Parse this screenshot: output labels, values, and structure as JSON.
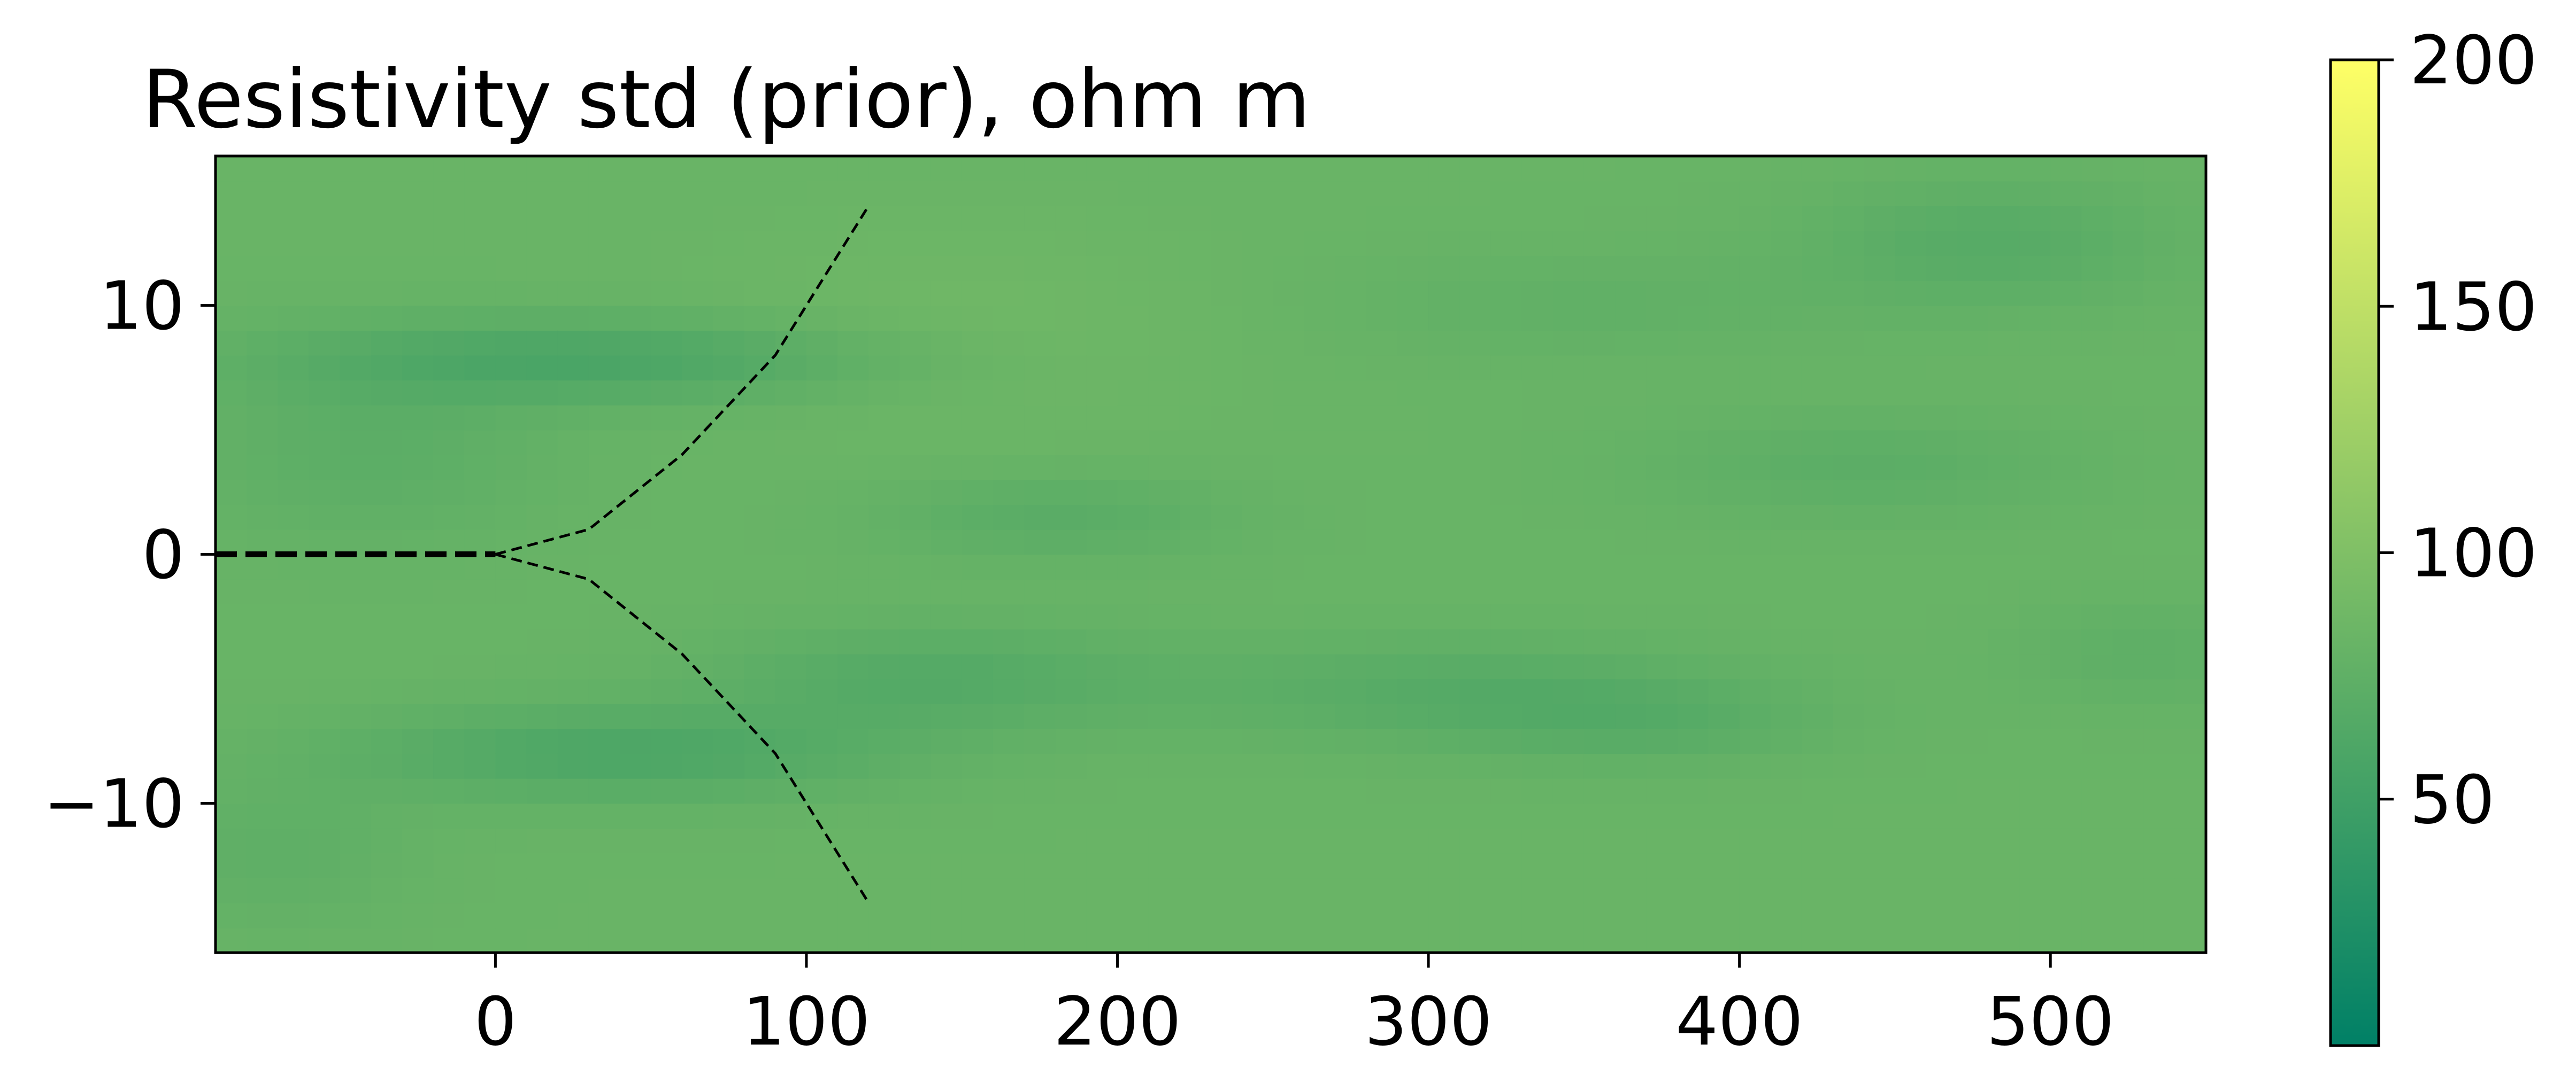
{
  "chart_data": {
    "type": "heatmap",
    "title": "Resistivity std (prior), ohm m",
    "xlabel": "",
    "ylabel": "",
    "xlim": [
      -90,
      550
    ],
    "ylim": [
      -16,
      16
    ],
    "x_ticks": [
      0,
      100,
      200,
      300,
      400,
      500
    ],
    "y_ticks": [
      -10,
      0,
      10
    ],
    "grid": false,
    "field": {
      "description_values": "approximate std field, ohm m",
      "base_value": 82,
      "features": [
        {
          "x": 30,
          "y": 7.8,
          "sx": 70,
          "sy": 1.2,
          "delta": -24
        },
        {
          "x": 40,
          "y": -8.0,
          "sx": 60,
          "sy": 1.3,
          "delta": -22
        },
        {
          "x": -40,
          "y": 4.0,
          "sx": 40,
          "sy": 2.5,
          "delta": -10
        },
        {
          "x": 140,
          "y": -5.0,
          "sx": 50,
          "sy": 1.5,
          "delta": -16
        },
        {
          "x": 180,
          "y": 1.5,
          "sx": 40,
          "sy": 1.2,
          "delta": -12
        },
        {
          "x": 310,
          "y": -5.5,
          "sx": 60,
          "sy": 1.5,
          "delta": -14
        },
        {
          "x": 370,
          "y": -6.8,
          "sx": 40,
          "sy": 1.2,
          "delta": -10
        },
        {
          "x": 480,
          "y": 12.5,
          "sx": 40,
          "sy": 1.8,
          "delta": -14
        },
        {
          "x": 440,
          "y": 3.5,
          "sx": 50,
          "sy": 1.5,
          "delta": -10
        },
        {
          "x": 530,
          "y": -4.0,
          "sx": 30,
          "sy": 1.5,
          "delta": -8
        },
        {
          "x": 350,
          "y": 10.0,
          "sx": 60,
          "sy": 1.5,
          "delta": -6
        },
        {
          "x": -70,
          "y": -12.0,
          "sx": 30,
          "sy": 2.0,
          "delta": -8
        },
        {
          "x": 150,
          "y": 9.0,
          "sx": 60,
          "sy": 3.0,
          "delta": 6
        }
      ]
    },
    "overlay_lines": [
      {
        "name": "center",
        "style": "dashed-thick",
        "x": [
          -90,
          0
        ],
        "y": [
          0,
          0
        ]
      },
      {
        "name": "upper-branch",
        "style": "dashed",
        "x": [
          0,
          30,
          60,
          90,
          120
        ],
        "y": [
          0,
          1,
          4,
          8,
          14
        ]
      },
      {
        "name": "lower-branch",
        "style": "dashed",
        "x": [
          0,
          30,
          60,
          90,
          120
        ],
        "y": [
          0,
          -1,
          -4,
          -8,
          -14
        ]
      }
    ],
    "colorbar": {
      "colormap": "summer",
      "vmin": 0,
      "vmax": 200,
      "ticks": [
        50,
        100,
        150,
        200
      ],
      "color_low": "#008066",
      "color_high": "#ffff66"
    }
  }
}
